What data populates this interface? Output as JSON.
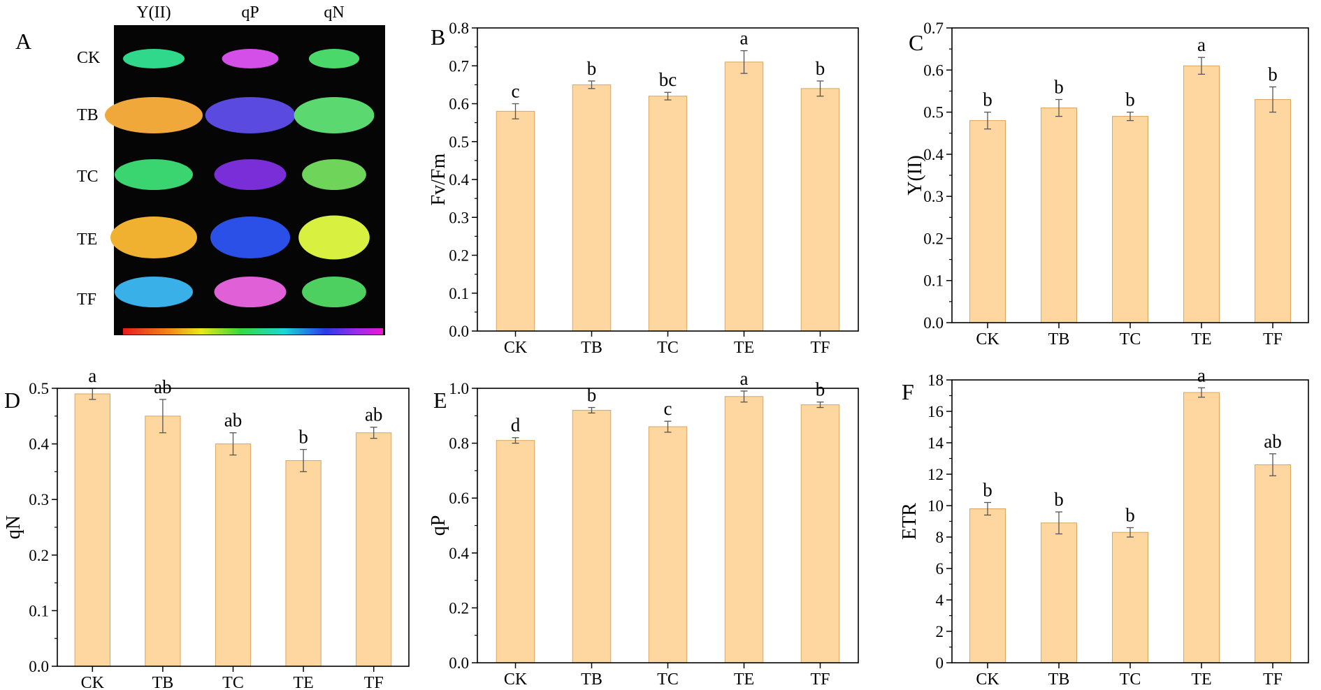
{
  "imaging_panel": {
    "letter": "A",
    "columns": [
      "Y(II)",
      "qP",
      "qN"
    ],
    "rows": [
      "CK",
      "TB",
      "TC",
      "TE",
      "TF"
    ],
    "leaf_colors": [
      [
        "#2fd88a",
        "#d44ee8",
        "#4bd86a"
      ],
      [
        "#f0a83a",
        "#5a4ae0",
        "#5bd870"
      ],
      [
        "#3ad470",
        "#7a2ed8",
        "#6ed45a"
      ],
      [
        "#f0b030",
        "#2a50e8",
        "#d8f040"
      ],
      [
        "#3ab0e8",
        "#e060d8",
        "#4ed060"
      ]
    ]
  },
  "chart_data": [
    {
      "type": "bar",
      "panel": "B",
      "categories": [
        "CK",
        "TB",
        "TC",
        "TE",
        "TF"
      ],
      "values": [
        0.58,
        0.65,
        0.62,
        0.71,
        0.64
      ],
      "errors": [
        0.02,
        0.01,
        0.01,
        0.03,
        0.02
      ],
      "significance": [
        "c",
        "b",
        "bc",
        "a",
        "b"
      ],
      "ylabel": "Fv/Fm",
      "ylim": [
        0,
        0.8
      ],
      "yticks": [
        "0.0",
        "0.1",
        "0.2",
        "0.3",
        "0.4",
        "0.5",
        "0.6",
        "0.7",
        "0.8"
      ],
      "bar_color": "#fdd6a0"
    },
    {
      "type": "bar",
      "panel": "C",
      "categories": [
        "CK",
        "TB",
        "TC",
        "TE",
        "TF"
      ],
      "values": [
        0.48,
        0.51,
        0.49,
        0.61,
        0.53
      ],
      "errors": [
        0.02,
        0.02,
        0.01,
        0.02,
        0.03
      ],
      "significance": [
        "b",
        "b",
        "b",
        "a",
        "b"
      ],
      "ylabel": "Y(II)",
      "ylim": [
        0,
        0.7
      ],
      "yticks": [
        "0.0",
        "0.1",
        "0.2",
        "0.3",
        "0.4",
        "0.5",
        "0.6",
        "0.7"
      ],
      "bar_color": "#fdd6a0"
    },
    {
      "type": "bar",
      "panel": "D",
      "categories": [
        "CK",
        "TB",
        "TC",
        "TE",
        "TF"
      ],
      "values": [
        0.49,
        0.45,
        0.4,
        0.37,
        0.42
      ],
      "errors": [
        0.01,
        0.03,
        0.02,
        0.02,
        0.01
      ],
      "significance": [
        "a",
        "ab",
        "ab",
        "b",
        "ab"
      ],
      "ylabel": "qN",
      "ylim": [
        0,
        0.5
      ],
      "yticks": [
        "0.0",
        "0.1",
        "0.2",
        "0.3",
        "0.4",
        "0.5"
      ],
      "bar_color": "#fdd6a0"
    },
    {
      "type": "bar",
      "panel": "E",
      "categories": [
        "CK",
        "TB",
        "TC",
        "TE",
        "TF"
      ],
      "values": [
        0.81,
        0.92,
        0.86,
        0.97,
        0.94
      ],
      "errors": [
        0.01,
        0.01,
        0.02,
        0.02,
        0.01
      ],
      "significance": [
        "d",
        "b",
        "c",
        "a",
        "b"
      ],
      "ylabel": "qP",
      "ylim": [
        0,
        1.0
      ],
      "yticks": [
        "0.0",
        "0.2",
        "0.4",
        "0.6",
        "0.8",
        "1.0"
      ],
      "bar_color": "#fdd6a0"
    },
    {
      "type": "bar",
      "panel": "F",
      "categories": [
        "CK",
        "TB",
        "TC",
        "TE",
        "TF"
      ],
      "values": [
        9.8,
        8.9,
        8.3,
        17.2,
        12.6
      ],
      "errors": [
        0.4,
        0.7,
        0.3,
        0.3,
        0.7
      ],
      "significance": [
        "b",
        "b",
        "b",
        "a",
        "ab"
      ],
      "ylabel": "ETR",
      "ylim": [
        0,
        18
      ],
      "yticks": [
        "0",
        "2",
        "4",
        "6",
        "8",
        "10",
        "12",
        "14",
        "16",
        "18"
      ],
      "bar_color": "#fdd6a0"
    }
  ]
}
